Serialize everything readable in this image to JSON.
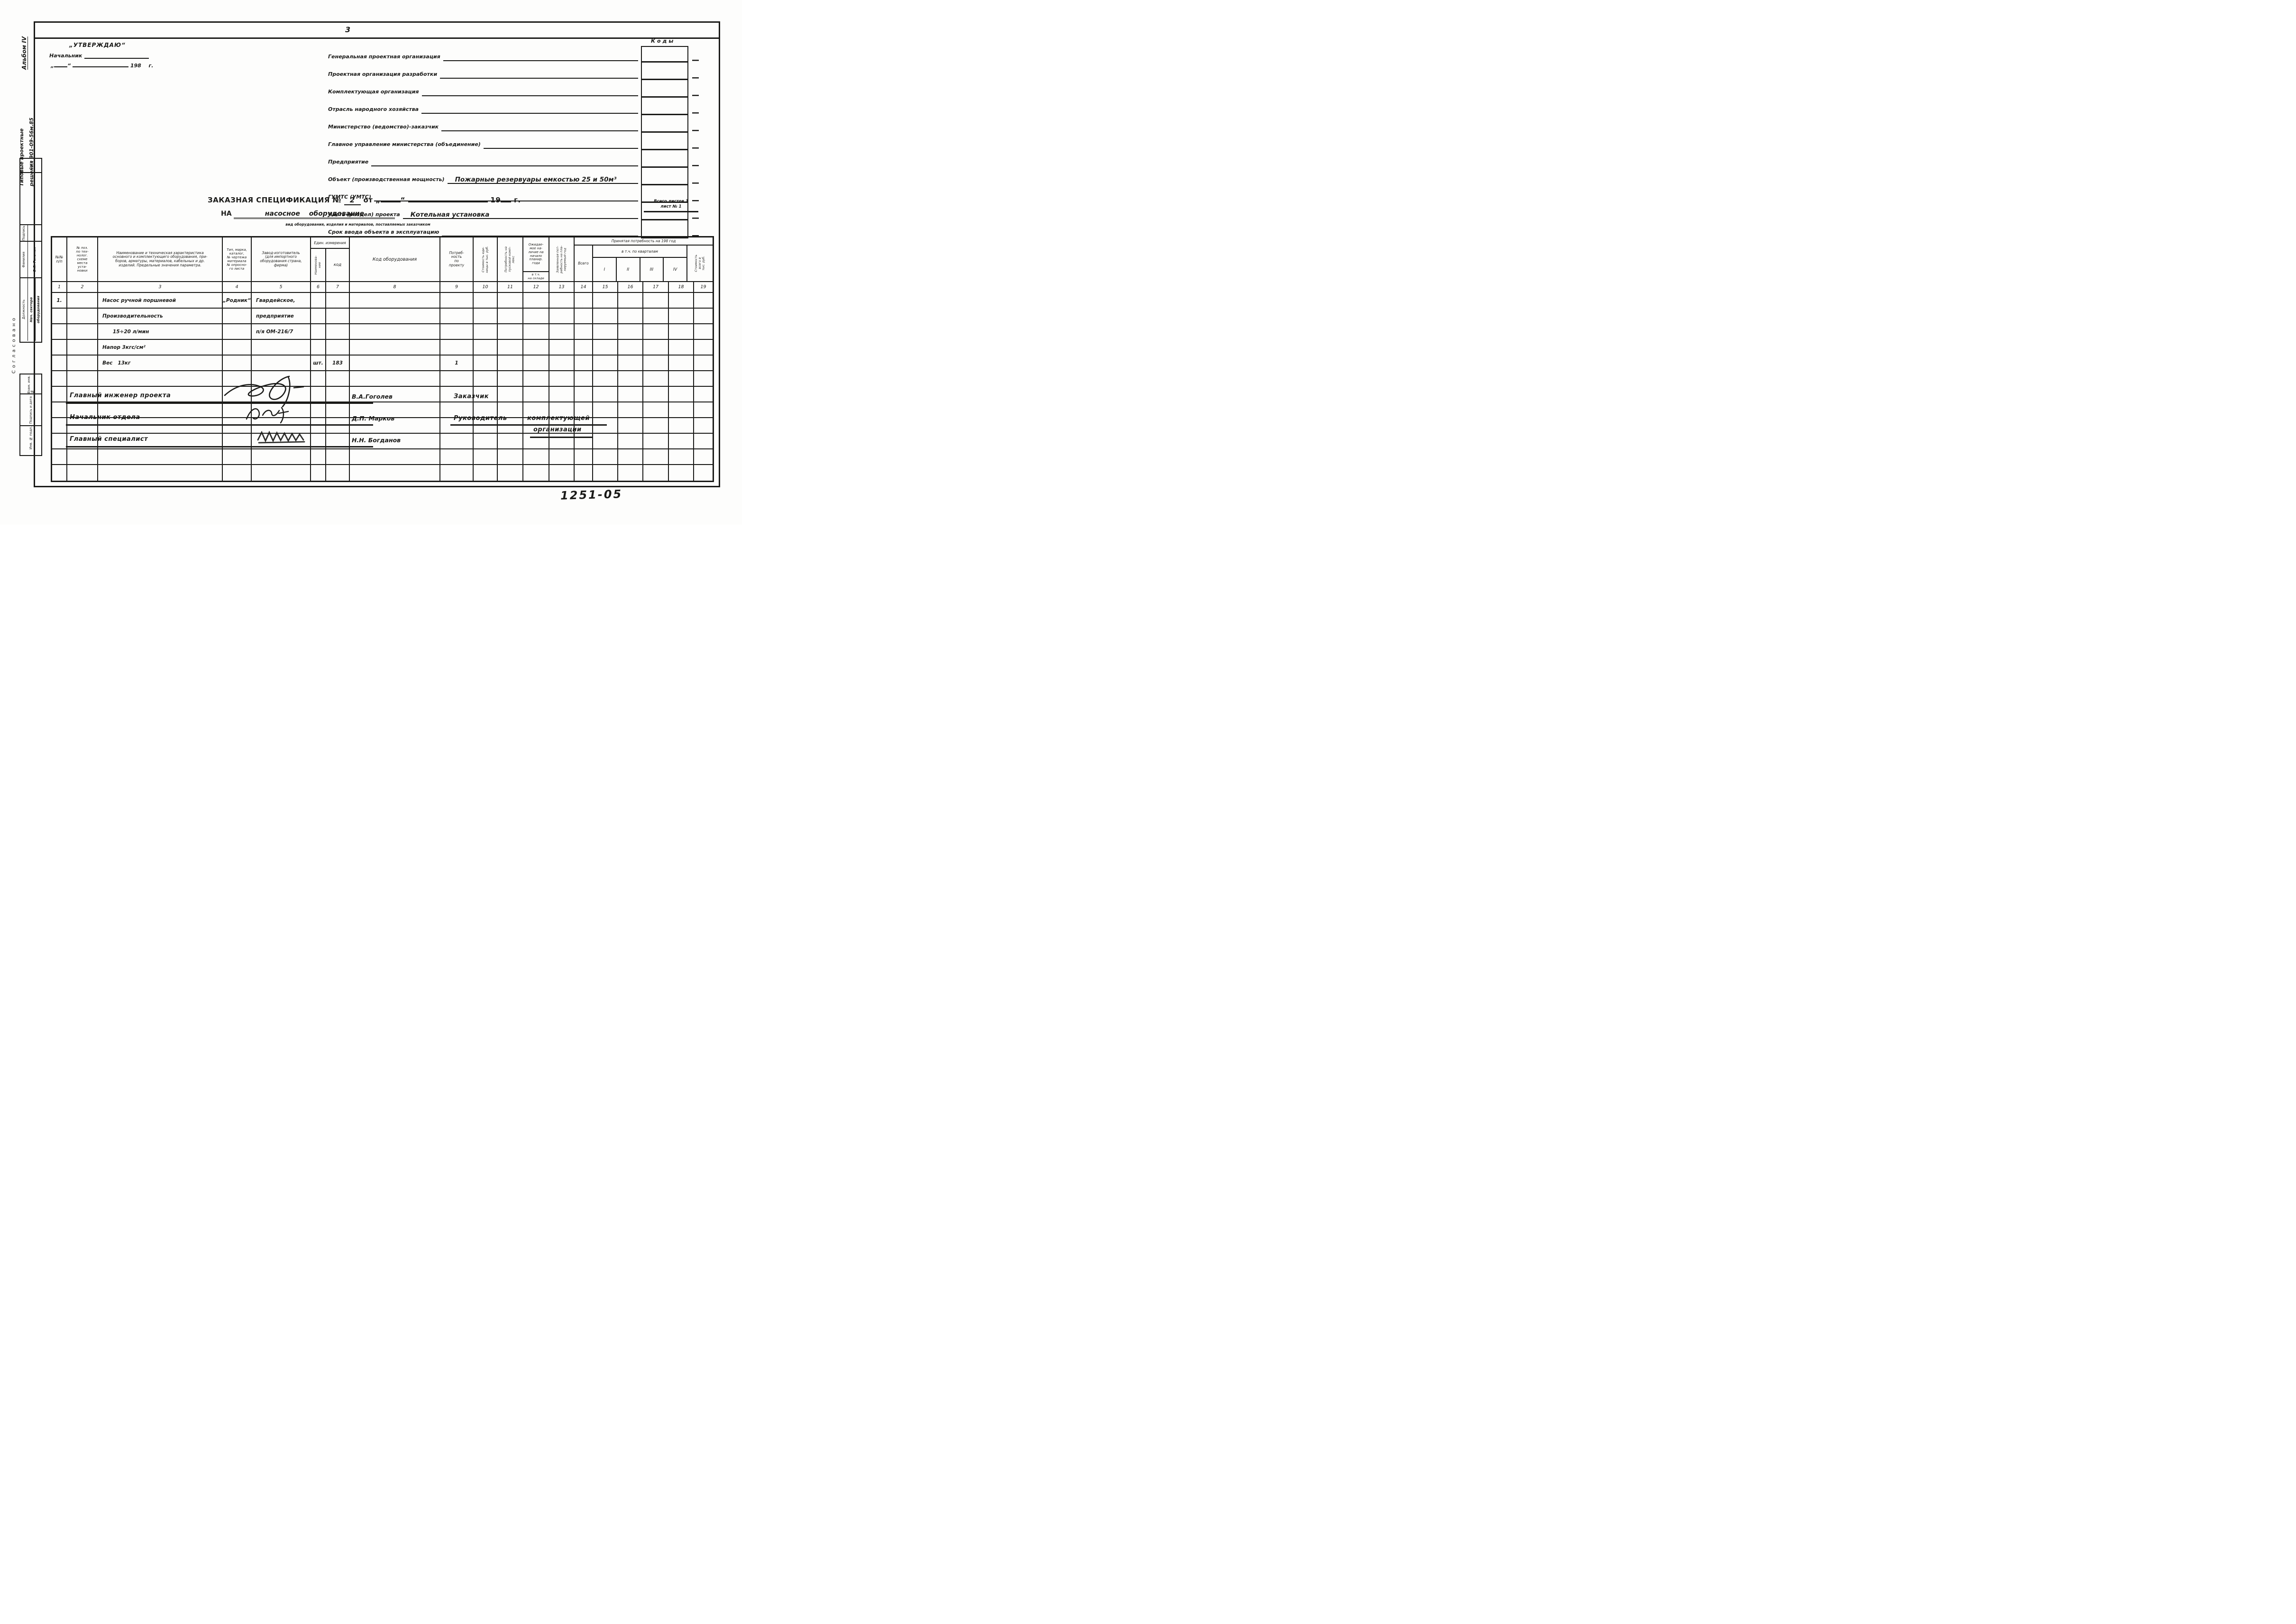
{
  "page": {
    "number": "3",
    "doc_number": "1251-05"
  },
  "margin": {
    "album": "Альбом IV",
    "series": "Типовые проектные\nрешения 901-09-56м.85",
    "agreed": "Согласовано"
  },
  "stamp": {
    "date_label": "Дата",
    "sign_label": "Подпись",
    "surname_label": "Фамилия",
    "surname_value": "В.Я. Гельман",
    "position_label": "Должность",
    "position_value_1": "Нач. сектора",
    "position_value_2": "оборудования",
    "vzam_label": "Взам. инв. №",
    "sign_date_label": "Подпись и дата",
    "inv_label": "Инв. № подл."
  },
  "approval": {
    "stamp_word": "„УТВЕРЖДАЮ“",
    "chief_label": "Начальник",
    "open_quote": "„",
    "close_quote": "“",
    "year_label": "198",
    "year_suffix": "г."
  },
  "codes": {
    "title": "Коды"
  },
  "form_fields": [
    {
      "label": "Генеральная проектная организация",
      "value": ""
    },
    {
      "label": "Проектная организация разработки",
      "value": ""
    },
    {
      "label": "Комплектующая организация",
      "value": ""
    },
    {
      "label": "Отрасль народного хозяйства",
      "value": ""
    },
    {
      "label": "Министерство (ведомство)-заказчик",
      "value": ""
    },
    {
      "label": "Главное управление министерства (объединение)",
      "value": ""
    },
    {
      "label": "Предприятие",
      "value": ""
    },
    {
      "label": "Объект (производственная мощность)",
      "value": "Пожарные резервуары емкостью 25 и 50м³"
    },
    {
      "label": "ГУМТС (УМТС)",
      "value": ""
    },
    {
      "label": "Часть (раздел) проекта",
      "value": "Котельная установка"
    },
    {
      "label": "Срок ввода объекта в эксплуатацию",
      "value": ""
    }
  ],
  "title_block": {
    "main": "ЗАКАЗНАЯ СПЕЦИФИКАЦИЯ №",
    "number": "2",
    "from_label": "от",
    "open_quote": "„",
    "close_quote": "“",
    "year_prefix": "19",
    "year_suffix": "г.",
    "na_label": "НА",
    "subject": "насосное  оборудование",
    "subject_note": "вид оборудования, изделия и материалов, поставляемых заказчиком",
    "sheets_total": "Всего листов 1",
    "sheet_number": "лист № 1"
  },
  "table": {
    "col1": "№№\nп/п",
    "col2": "№ поз.\nпо тех-\nнолог.\nсхеме\nместа\nуста-\nновки",
    "col3": "Наименование и техническая характеристика\nосновного и комплектующего оборудования, при-\nборов, арматуры, материалов, кабельных и др.\nизделий. Предельные значения параметра.",
    "col4": "Тип, марка,\nкаталог,\n№ чертежа\nматериала\n№ опросно-\nго листа",
    "col5": "Завод-изготовитель\n(для импортного\nоборудования страна,\nфирма)",
    "units_group": "Един. измерения",
    "col6": "Наименова-\nние",
    "col7": "код",
    "col8": "Код оборудования",
    "col9": "Потреб-\nность\nпо\nпроекту",
    "col10": "Стоимость еди-\nницы в тыс. руб.",
    "col11": "Потребность на\nпусковой комп-\nлекс",
    "col12": "Ожидае-\nмое на-\nличие на\nначало\nпланир.\nгода",
    "col12_sub": "в т.ч.\nна складе",
    "col13": "Заявленная пот-\nребность на пла-\nнируемый год",
    "accepted_group": "Принятая потребность на 198    год",
    "col14": "Всего",
    "quarters_group": "в т.ч. по кварталам",
    "col15": "I",
    "col16": "II",
    "col17": "III",
    "col18": "IV",
    "col19": "Стоимость\nвсего в\nтыс. руб.",
    "column_numbers": [
      "1",
      "2",
      "3",
      "4",
      "5",
      "6",
      "7",
      "8",
      "9",
      "10",
      "11",
      "12",
      "13",
      "14",
      "15",
      "16",
      "17",
      "18",
      "19"
    ],
    "body_rows": [
      [
        "1.",
        "",
        "Насос ручной поршневой",
        "„Родник“",
        "Гвардейское,",
        "",
        "",
        "",
        "",
        "",
        "",
        "",
        "",
        "",
        "",
        "",
        "",
        "",
        ""
      ],
      [
        "",
        "",
        "Производительность",
        "",
        "предприятие",
        "",
        "",
        "",
        "",
        "",
        "",
        "",
        "",
        "",
        "",
        "",
        "",
        "",
        ""
      ],
      [
        "",
        "",
        "      15÷20 л/мин",
        "",
        "п/я ОМ-216/7",
        "",
        "",
        "",
        "",
        "",
        "",
        "",
        "",
        "",
        "",
        "",
        "",
        "",
        ""
      ],
      [
        "",
        "",
        "Напор 3кгс/см²",
        "",
        "",
        "",
        "",
        "",
        "",
        "",
        "",
        "",
        "",
        "",
        "",
        "",
        "",
        "",
        ""
      ],
      [
        "",
        "",
        "Вес   13кг",
        "",
        "",
        "шт.",
        "183",
        "",
        "1",
        "",
        "",
        "",
        "",
        "",
        "",
        "",
        "",
        "",
        ""
      ],
      [
        "",
        "",
        "",
        "",
        "",
        "",
        "",
        "",
        "",
        "",
        "",
        "",
        "",
        "",
        "",
        "",
        "",
        "",
        ""
      ],
      [
        "",
        "",
        "",
        "",
        "",
        "",
        "",
        "",
        "",
        "",
        "",
        "",
        "",
        "",
        "",
        "",
        "",
        "",
        ""
      ],
      [
        "",
        "",
        "",
        "",
        "",
        "",
        "",
        "",
        "",
        "",
        "",
        "",
        "",
        "",
        "",
        "",
        "",
        "",
        ""
      ],
      [
        "",
        "",
        "",
        "",
        "",
        "",
        "",
        "",
        "",
        "",
        "",
        "",
        "",
        "",
        "",
        "",
        "",
        "",
        ""
      ],
      [
        "",
        "",
        "",
        "",
        "",
        "",
        "",
        "",
        "",
        "",
        "",
        "",
        "",
        "",
        "",
        "",
        "",
        "",
        ""
      ],
      [
        "",
        "",
        "",
        "",
        "",
        "",
        "",
        "",
        "",
        "",
        "",
        "",
        "",
        "",
        "",
        "",
        "",
        "",
        ""
      ],
      [
        "",
        "",
        "",
        "",
        "",
        "",
        "",
        "",
        "",
        "",
        "",
        "",
        "",
        "",
        "",
        "",
        "",
        "",
        ""
      ]
    ]
  },
  "signatures": {
    "row1": {
      "role": "Главный инженер проекта",
      "name": "В.А.Гоголев",
      "right": "Заказчик"
    },
    "row2": {
      "role": "Начальник отдела",
      "name": "Д.П. Марков",
      "right": "Руководитель",
      "right2": "комплектующей"
    },
    "org_line": "организации",
    "row3": {
      "role": "Главный специалист",
      "name": "Н.Н. Богданов"
    }
  }
}
